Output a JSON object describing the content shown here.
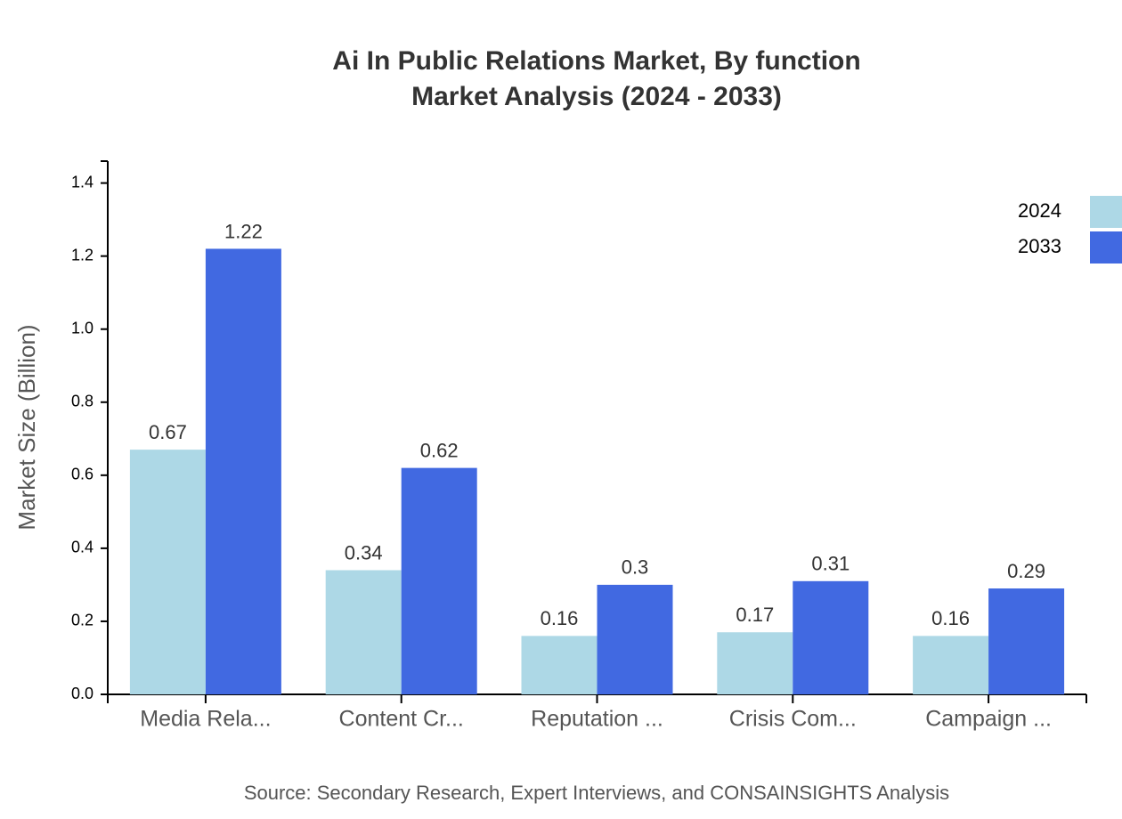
{
  "chart_data": {
    "type": "bar",
    "title": "Ai In Public Relations Market, By function",
    "subtitle": "Market Analysis (2024 - 2033)",
    "y_label": "Market Size (Billion)",
    "source": "Source: Secondary Research, Expert Interviews, and CONSAINSIGHTS Analysis",
    "categories": [
      "Media Rela...",
      "Content Cr...",
      "Reputation ...",
      "Crisis Com...",
      "Campaign ..."
    ],
    "series": [
      {
        "name": "2024",
        "color": "#add8e6",
        "values": [
          0.67,
          0.34,
          0.16,
          0.17,
          0.16
        ]
      },
      {
        "name": "2033",
        "color": "#4169e1",
        "values": [
          1.22,
          0.62,
          0.3,
          0.31,
          0.29
        ]
      }
    ],
    "ylim": [
      0,
      1.46
    ],
    "yticks": [
      {
        "value": 0,
        "label": "0.0"
      },
      0.2,
      0.4,
      0.6,
      0.8,
      {
        "value": 1,
        "label": "1.0"
      },
      1.2,
      1.4
    ],
    "legend": "top-right"
  }
}
